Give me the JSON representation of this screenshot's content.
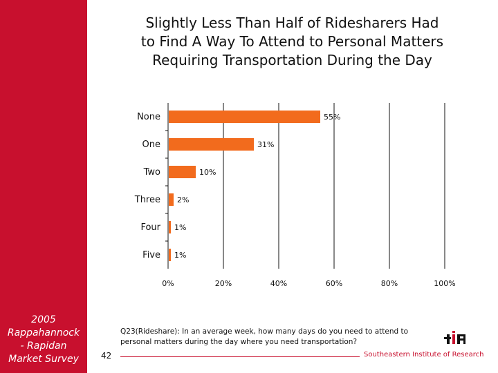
{
  "sidebar": {
    "caption_lines": [
      "2005",
      "Rappahannock",
      "- Rapidan",
      "Market Survey"
    ]
  },
  "title_lines": [
    "Slightly Less Than Half of Ridesharers Had",
    "to Find A Way To Attend to Personal Matters",
    "Requiring Transportation During the Day"
  ],
  "chart_data": {
    "type": "bar",
    "orientation": "horizontal",
    "title": "Slightly Less Than Half of Ridesharers Had to Find A Way To Attend to Personal Matters Requiring Transportation During the Day",
    "categories": [
      "None",
      "One",
      "Two",
      "Three",
      "Four",
      "Five"
    ],
    "values": [
      55,
      31,
      10,
      2,
      1,
      1
    ],
    "value_labels": [
      "55%",
      "31%",
      "10%",
      "2%",
      "1%",
      "1%"
    ],
    "xlim": [
      0,
      100
    ],
    "x_ticks": [
      0,
      20,
      40,
      60,
      80,
      100
    ],
    "x_tick_labels": [
      "0%",
      "20%",
      "40%",
      "60%",
      "80%",
      "100%"
    ],
    "grid": "vertical",
    "bar_color": "#f26b1d",
    "xlabel": "",
    "ylabel": ""
  },
  "question": "Q23(Rideshare): In an average week, how many days do you need to attend to personal matters during the day where you need transportation?",
  "footer": {
    "page_number": "42",
    "organization": "Southeastern Institute of Research"
  },
  "colors": {
    "brand_red": "#c8102e",
    "bar_orange": "#f26b1d",
    "grid": "#111111"
  }
}
